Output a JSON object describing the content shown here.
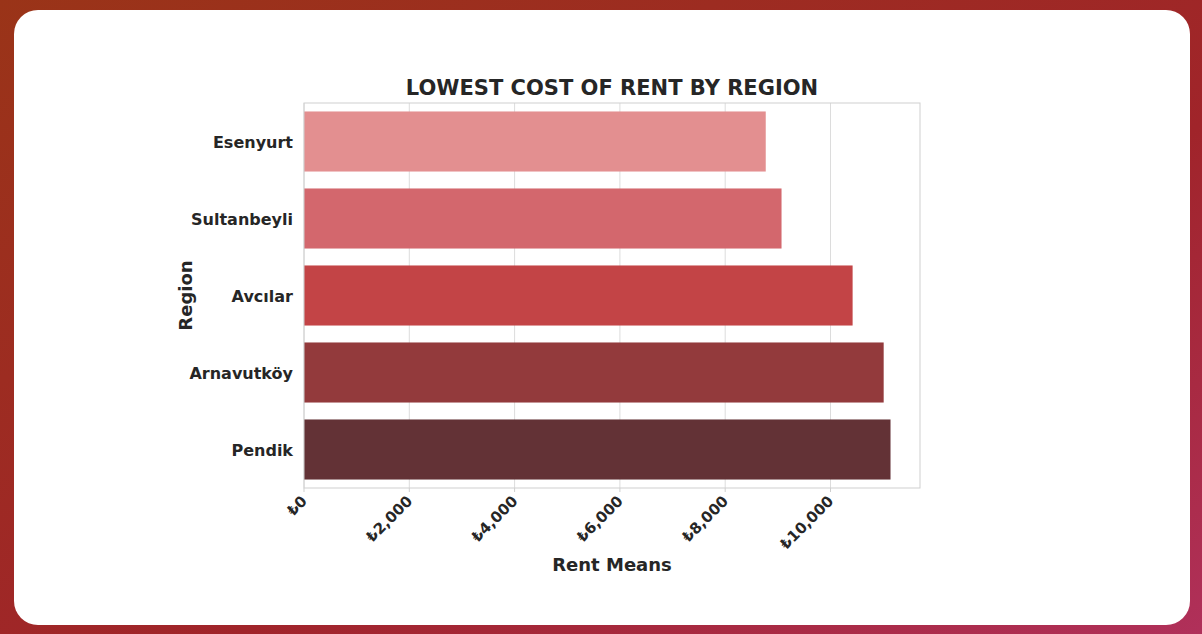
{
  "chart_data": {
    "type": "bar",
    "orientation": "horizontal",
    "title": "LOWEST COST OF RENT BY REGION",
    "x_label": "Rent Means",
    "y_label": "Region",
    "categories": [
      "Esenyurt",
      "Sultanbeyli",
      "Avcılar",
      "Arnavutköy",
      "Pendik"
    ],
    "values": [
      8770,
      9070,
      10420,
      11010,
      11140
    ],
    "colors": [
      "#e38f90",
      "#d3676d",
      "#c34446",
      "#933a3c",
      "#633236"
    ],
    "xlim": [
      0,
      11700
    ],
    "xticks": [
      {
        "value": 0,
        "label": "₺0"
      },
      {
        "value": 2000,
        "label": "₺2,000"
      },
      {
        "value": 4000,
        "label": "₺4,000"
      },
      {
        "value": 6000,
        "label": "₺6,000"
      },
      {
        "value": 8000,
        "label": "₺8,000"
      },
      {
        "value": 10000,
        "label": "₺10,000"
      }
    ],
    "grid": true
  }
}
